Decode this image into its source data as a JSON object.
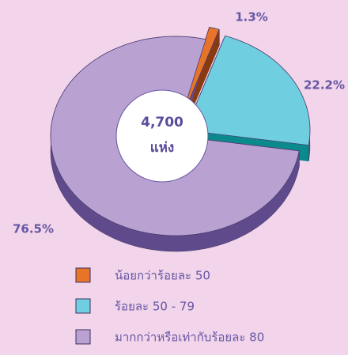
{
  "chart_data": {
    "type": "pie3d",
    "categories": [
      "น้อยกว่าร้อยละ 50",
      "ร้อยละ 50 - 79",
      "มากกว่าหรือเท่ากับร้อยละ 80"
    ],
    "values": [
      1.3,
      22.2,
      76.5
    ],
    "value_labels": [
      "1.3%",
      "22.2%",
      "76.5%"
    ],
    "colors": [
      "#e8742a",
      "#6fcfe0",
      "#b9a2d2"
    ],
    "side_colors": [
      "#8a3a12",
      "#0b8a8c",
      "#5f4b8c"
    ],
    "annotations": [
      "4,700",
      "แห่ง"
    ]
  }
}
